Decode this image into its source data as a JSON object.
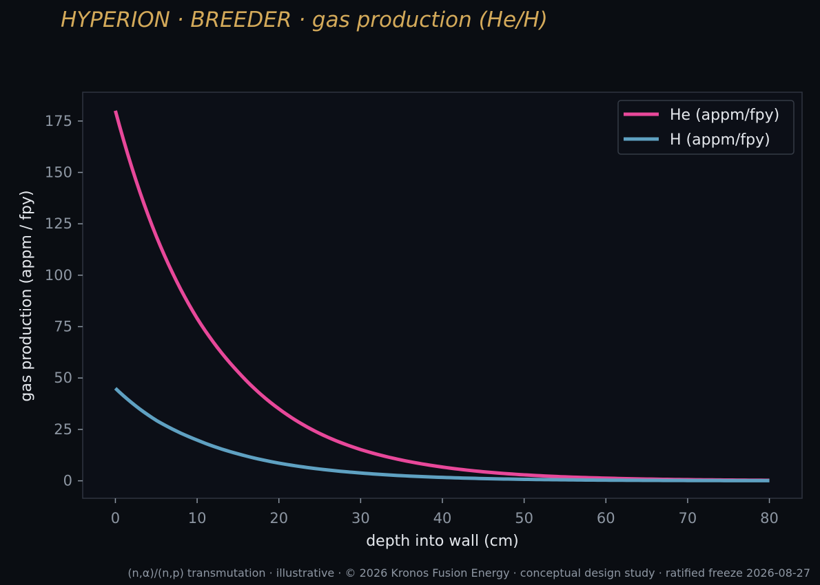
{
  "chart_data": {
    "type": "line",
    "title": "HYPERION · BREEDER  ·  gas production (He/H)",
    "xlabel": "depth into wall (cm)",
    "ylabel": "gas production (appm / fpy)",
    "footer": "(n,α)/(n,p) transmutation · illustrative · © 2026 Kronos Fusion Energy · conceptual design study · ratified freeze 2026-08-27",
    "xlim": [
      -4,
      84
    ],
    "ylim": [
      -8.5,
      189
    ],
    "x_ticks": [
      "0",
      "10",
      "20",
      "30",
      "40",
      "50",
      "60",
      "70",
      "80"
    ],
    "y_ticks": [
      "0",
      "25",
      "50",
      "75",
      "100",
      "125",
      "150",
      "175"
    ],
    "grid": false,
    "legend_position": "top-right",
    "x": [
      0,
      5,
      10,
      15,
      20,
      25,
      30,
      35,
      40,
      45,
      50,
      55,
      60,
      65,
      70,
      75,
      80
    ],
    "series": [
      {
        "name": "He (appm/fpy)",
        "color": "#e8489a",
        "values": [
          180,
          119,
          79,
          53,
          35,
          23,
          15.2,
          10.1,
          6.7,
          4.4,
          2.9,
          1.9,
          1.3,
          0.85,
          0.56,
          0.37,
          0.25
        ]
      },
      {
        "name": "H (appm/fpy)",
        "color": "#5fa1c2",
        "values": [
          45,
          29.4,
          19.8,
          13.1,
          8.6,
          5.7,
          3.8,
          2.5,
          1.65,
          1.1,
          0.72,
          0.48,
          0.32,
          0.21,
          0.14,
          0.09,
          0.06
        ]
      }
    ]
  }
}
